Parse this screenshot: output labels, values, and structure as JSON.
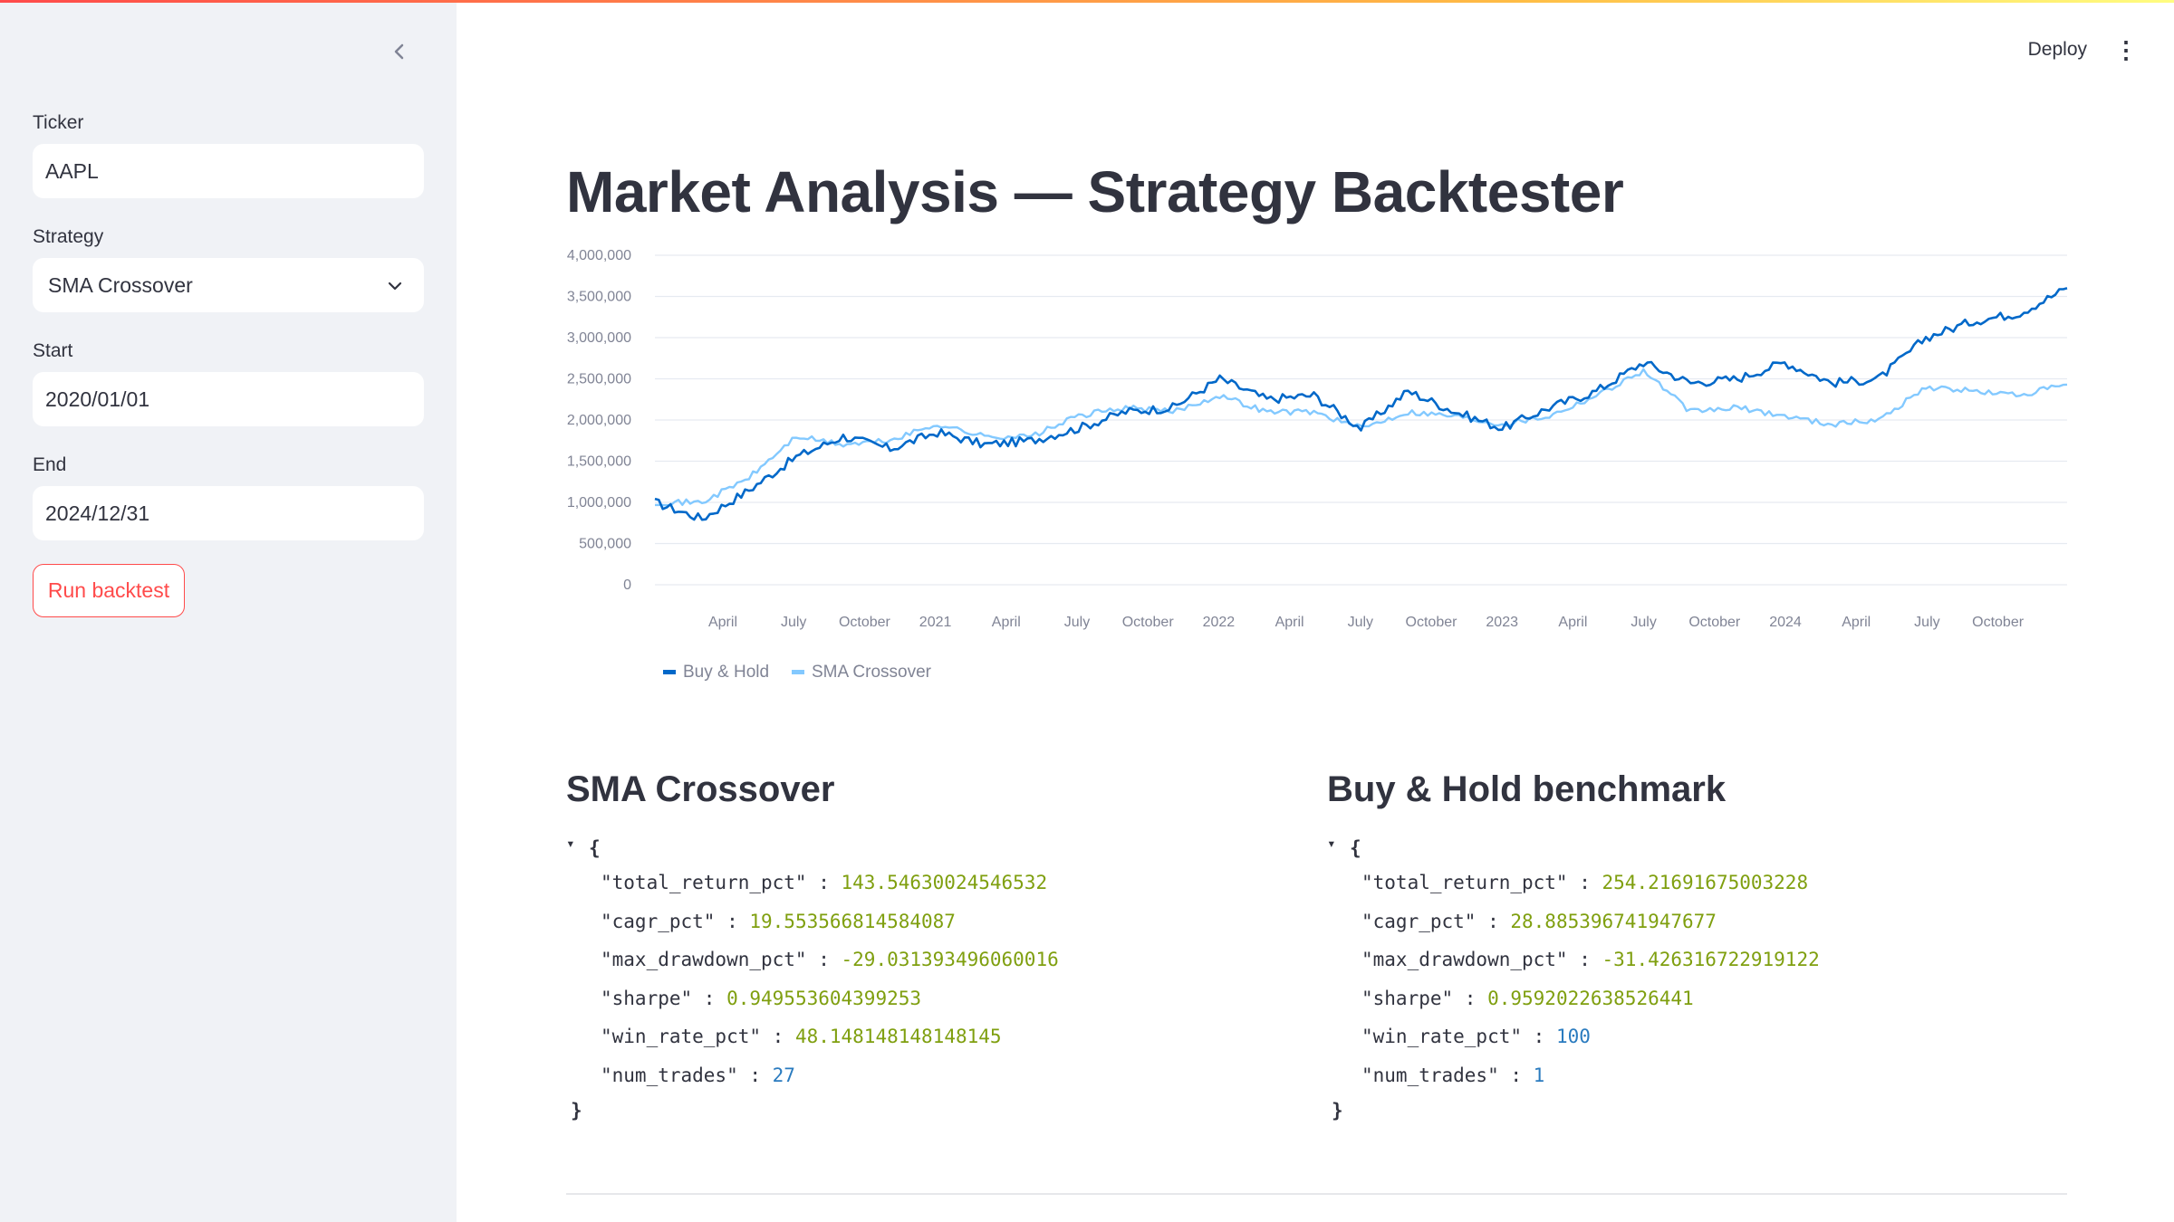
{
  "sidebar": {
    "collapse_icon": "chevron-left-icon",
    "ticker_label": "Ticker",
    "ticker_value": "AAPL",
    "strategy_label": "Strategy",
    "strategy_value": "SMA Crossover",
    "start_label": "Start",
    "start_value": "2020/01/01",
    "end_label": "End",
    "end_value": "2024/12/31",
    "run_label": "Run backtest"
  },
  "header": {
    "deploy_label": "Deploy",
    "menu_icon": "kebab-menu-icon"
  },
  "main": {
    "title": "Market Analysis — Strategy Backtester"
  },
  "chart_data": {
    "type": "line",
    "xlabel": "",
    "ylabel": "",
    "ylim": [
      0,
      4000000
    ],
    "yticks": [
      "4,000,000",
      "3,500,000",
      "3,000,000",
      "2,500,000",
      "2,000,000",
      "1,500,000",
      "1,000,000",
      "500,000",
      "0"
    ],
    "xticks": [
      "April",
      "July",
      "October",
      "2021",
      "April",
      "July",
      "October",
      "2022",
      "April",
      "July",
      "October",
      "2023",
      "April",
      "July",
      "October",
      "2024",
      "April",
      "July",
      "October"
    ],
    "legend_position": "bottom-left",
    "x": [
      "2020-01",
      "2020-03",
      "2020-05",
      "2020-07",
      "2020-09",
      "2020-11",
      "2021-01",
      "2021-03",
      "2021-05",
      "2021-07",
      "2021-09",
      "2021-11",
      "2022-01",
      "2022-03",
      "2022-05",
      "2022-07",
      "2022-09",
      "2022-11",
      "2023-01",
      "2023-03",
      "2023-05",
      "2023-07",
      "2023-09",
      "2023-11",
      "2024-01",
      "2024-03",
      "2024-05",
      "2024-07",
      "2024-09",
      "2024-11",
      "2024-12"
    ],
    "series": [
      {
        "name": "Buy & Hold",
        "color": "#0068c9",
        "values": [
          1000000,
          800000,
          1150000,
          1550000,
          1800000,
          1650000,
          1850000,
          1700000,
          1750000,
          1900000,
          2100000,
          2150000,
          2500000,
          2250000,
          2300000,
          1900000,
          2350000,
          2100000,
          1900000,
          2150000,
          2350000,
          2700000,
          2450000,
          2500000,
          2700000,
          2450000,
          2500000,
          3000000,
          3200000,
          3300000,
          3600000
        ]
      },
      {
        "name": "SMA Crossover",
        "color": "#83c9ff",
        "values": [
          1000000,
          1000000,
          1300000,
          1800000,
          1700000,
          1750000,
          1950000,
          1800000,
          1800000,
          2050000,
          2150000,
          2100000,
          2300000,
          2100000,
          2100000,
          1900000,
          2100000,
          2050000,
          1950000,
          2050000,
          2300000,
          2600000,
          2100000,
          2150000,
          2050000,
          1950000,
          2000000,
          2400000,
          2350000,
          2300000,
          2430000
        ]
      }
    ]
  },
  "sections": [
    {
      "title": "SMA Crossover",
      "rows": [
        {
          "key": "\"total_return_pct\"",
          "value": "143.54630024546532",
          "kind": "num"
        },
        {
          "key": "\"cagr_pct\"",
          "value": "19.553566814584087",
          "kind": "num"
        },
        {
          "key": "\"max_drawdown_pct\"",
          "value": "-29.031393496060016",
          "kind": "num"
        },
        {
          "key": "\"sharpe\"",
          "value": "0.949553604399253",
          "kind": "num"
        },
        {
          "key": "\"win_rate_pct\"",
          "value": "48.148148148148145",
          "kind": "num"
        },
        {
          "key": "\"num_trades\"",
          "value": "27",
          "kind": "int"
        }
      ]
    },
    {
      "title": "Buy & Hold benchmark",
      "rows": [
        {
          "key": "\"total_return_pct\"",
          "value": "254.21691675003228",
          "kind": "num"
        },
        {
          "key": "\"cagr_pct\"",
          "value": "28.885396741947677",
          "kind": "num"
        },
        {
          "key": "\"max_drawdown_pct\"",
          "value": "-31.426316722919122",
          "kind": "num"
        },
        {
          "key": "\"sharpe\"",
          "value": "0.9592022638526441",
          "kind": "num"
        },
        {
          "key": "\"win_rate_pct\"",
          "value": "100",
          "kind": "int"
        },
        {
          "key": "\"num_trades\"",
          "value": "1",
          "kind": "int"
        }
      ]
    }
  ]
}
